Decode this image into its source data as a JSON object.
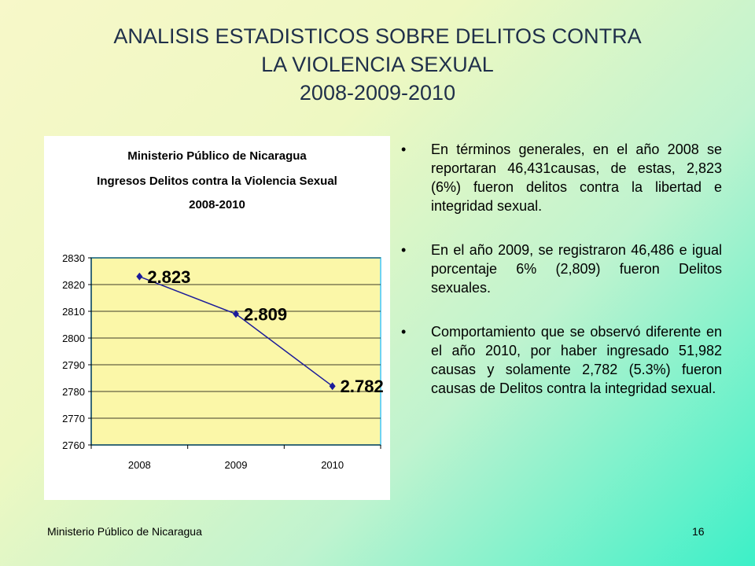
{
  "slide": {
    "title_lines": [
      "ANALISIS ESTADISTICOS SOBRE DELITOS CONTRA",
      "LA VIOLENCIA SEXUAL",
      "2008-2009-2010"
    ],
    "bullets": [
      "En términos generales, en el año 2008 se reportaran 46,431causas, de estas, 2,823 (6%) fueron delitos contra la libertad e integridad sexual.",
      "En el año 2009, se registraron 46,486 e igual porcentaje 6% (2,809) fueron Delitos sexuales.",
      "Comportamiento que se observó diferente en el año 2010, por haber ingresado 51,982 causas y solamente 2,782 (5.3%) fueron causas de Delitos contra la integridad sexual."
    ],
    "bullet_glyph": "•",
    "footer_org": "Ministerio Público de Nicaragua",
    "page_number": "16"
  },
  "chart_data": {
    "type": "line",
    "title_lines": [
      "Ministerio Público de Nicaragua",
      "Ingresos Delitos contra la Violencia Sexual",
      "2008-2010"
    ],
    "categories": [
      "2008",
      "2009",
      "2010"
    ],
    "series": [
      {
        "values": [
          2823,
          2809,
          2782
        ]
      }
    ],
    "data_labels": [
      "2.823",
      "2.809",
      "2.782"
    ],
    "ylim": [
      2760,
      2830
    ],
    "yticks": [
      2760,
      2770,
      2780,
      2790,
      2800,
      2810,
      2820,
      2830
    ],
    "grid": true,
    "colors": {
      "plot_bg": "#fbf7a8",
      "line": "#1c1c9a",
      "marker": "#1c1c9a",
      "axis_frame": "#6fd3f0",
      "title": "#000000"
    }
  }
}
